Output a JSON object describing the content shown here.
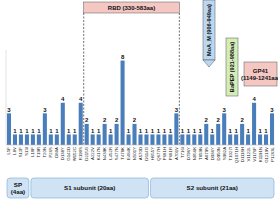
{
  "chart_data": {
    "type": "bar",
    "categories": [
      "L5F",
      "L8V",
      "S12F",
      "S13I",
      "L18F",
      "T19R",
      "T20N",
      "P26S",
      "D80A",
      "D138Y",
      "G142D",
      "W152C",
      "R190S",
      "D215G",
      "A222V",
      "K417N",
      "N439K",
      "L452R",
      "S477N",
      "T478K",
      "E484K",
      "N501Y",
      "A570D",
      "D614G",
      "H655Y",
      "Q677H",
      "P681H",
      "P681R",
      "A701V",
      "T716I",
      "D796Y",
      "N856K",
      "T859N",
      "A879S",
      "D936Y",
      "D950N",
      "S982A",
      "T1027I",
      "Q1071H",
      "D1118H",
      "V1122L",
      "V1176F",
      "K1191N",
      "G1219V",
      "P1263L"
    ],
    "values": [
      3,
      1,
      1,
      1,
      1,
      1,
      3,
      1,
      1,
      4,
      1,
      1,
      4,
      2,
      1,
      1,
      2,
      1,
      2,
      8,
      1,
      2,
      1,
      1,
      1,
      1,
      1,
      1,
      3,
      1,
      1,
      1,
      1,
      2,
      1,
      2,
      3,
      1,
      1,
      2,
      1,
      4,
      1,
      1,
      3
    ],
    "color": "#4a7ebb",
    "ylim": [
      0,
      9
    ],
    "data_labels": true,
    "tick_labels": "x",
    "annotations": [
      {
        "lines": [
          "RBD (330-583aa)"
        ],
        "color": "#f4c7c3"
      },
      {
        "lines": [
          "MoA_M (906-949aa)"
        ],
        "color": "#bcd7f0"
      },
      {
        "lines": [
          "BaPEP (921-988aa)"
        ],
        "color": "#d4edb8"
      },
      {
        "lines": [
          "GP41",
          "(1149-1241aa)"
        ],
        "color": "#f4c7c3"
      }
    ],
    "regions": [
      {
        "lines": [
          "SP",
          "(4aa)"
        ],
        "color": "#cfe3f5"
      },
      {
        "lines": [
          "S1 subunit (20aa)"
        ],
        "color": "#cfe3f5"
      },
      {
        "lines": [
          "S2 subunit (21aa)"
        ],
        "color": "#cfe3f5"
      }
    ]
  }
}
